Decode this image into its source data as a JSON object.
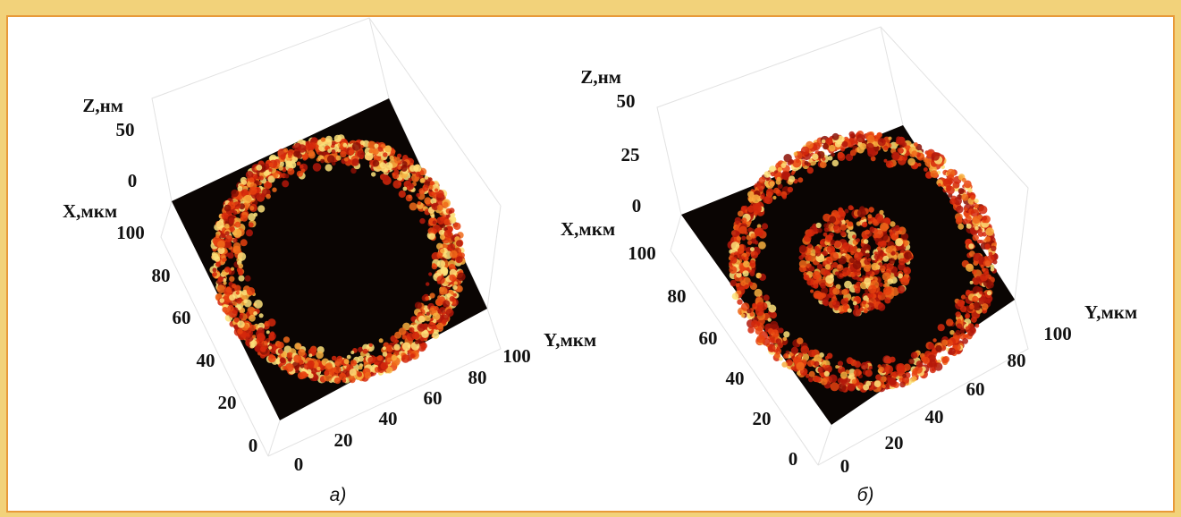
{
  "panels": [
    {
      "caption": "а)",
      "z_label": "Z,нм",
      "x_label": "X,мкм",
      "y_label": "Y,мкм",
      "z_ticks": [
        0,
        50
      ],
      "x_ticks": [
        100,
        80,
        60,
        40,
        20,
        0
      ],
      "y_ticks": [
        0,
        20,
        40,
        60,
        80,
        100
      ]
    },
    {
      "caption": "б)",
      "z_label": "Z,нм",
      "x_label": "X,мкм",
      "y_label": "Y,мкм",
      "z_ticks": [
        0,
        25,
        50
      ],
      "x_ticks": [
        100,
        80,
        60,
        40,
        20,
        0
      ],
      "y_ticks": [
        0,
        20,
        40,
        60,
        80,
        100
      ]
    }
  ]
}
